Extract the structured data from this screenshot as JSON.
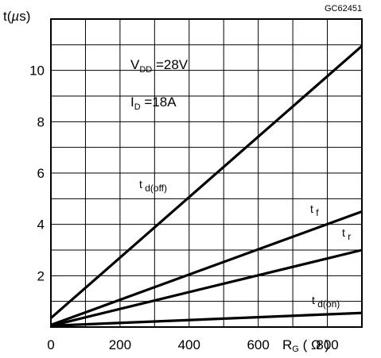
{
  "chart_data": {
    "type": "line",
    "doc_code": "GC62451",
    "y_unit_label": "t(µs)",
    "x_unit_label": "R G ( Ω )",
    "xlim": [
      0,
      900
    ],
    "ylim": [
      0,
      12
    ],
    "x_ticks": [
      0,
      200,
      400,
      600,
      800
    ],
    "y_ticks": [
      2,
      4,
      6,
      8,
      10
    ],
    "grid": true,
    "conditions": [
      "V DD =28V",
      "I D =18A"
    ],
    "series": [
      {
        "name": "t d(off)",
        "x": [
          0,
          900
        ],
        "y": [
          0.35,
          10.95
        ]
      },
      {
        "name": "t f",
        "x": [
          0,
          900
        ],
        "y": [
          0.08,
          4.5
        ]
      },
      {
        "name": "t r",
        "x": [
          0,
          900
        ],
        "y": [
          0.05,
          3.0
        ]
      },
      {
        "name": "t d(on)",
        "x": [
          0,
          900
        ],
        "y": [
          0.05,
          0.55
        ]
      }
    ]
  },
  "style": {
    "line_color": "#000000",
    "background": "#ffffff"
  }
}
